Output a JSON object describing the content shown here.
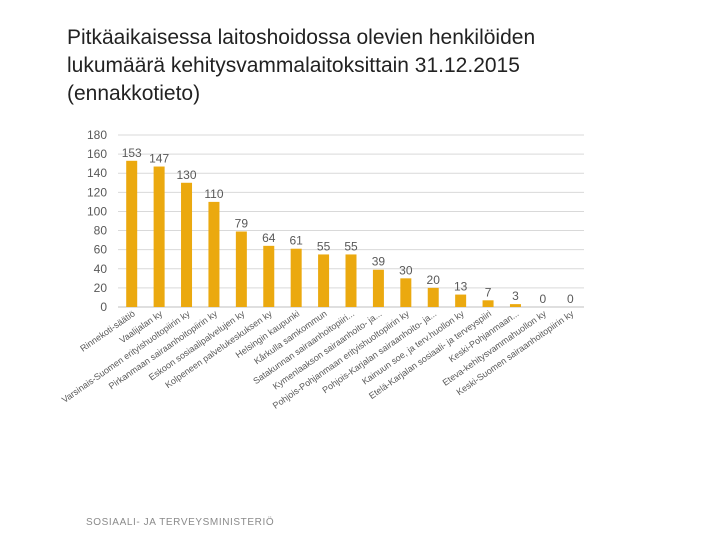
{
  "slide": {
    "title_lines": [
      "Pitkäaikaisessa laitoshoidossa olevien henkilöiden",
      "lukumäärä kehitysvammalaitoksittain 31.12.2015",
      "(ennakkotieto)"
    ],
    "footer": "SOSIAALI- JA TERVEYSMINISTERIÖ"
  },
  "chart_data": {
    "type": "bar",
    "title": "",
    "xlabel": "",
    "ylabel": "",
    "ylim": [
      0,
      180
    ],
    "yticks": [
      0,
      20,
      40,
      60,
      80,
      100,
      120,
      140,
      160,
      180
    ],
    "grid": true,
    "legend": "none",
    "bar_color": "#EBA90F",
    "grid_color": "#d9d9d9",
    "categories": [
      "Rinnekoti-säätiö",
      "Vaalijalan ky",
      "Varsinais-Suomen erityishuoltopiirin ky",
      "Pirkanmaan sairaanhoitopiirin ky",
      "Eskoon sosiaalipalvelujen ky",
      "Kolpeneen palvelukeskuksen ky",
      "Helsingin kaupunki",
      "Kårkulla samkommun",
      "Satakunnan sairaanhoitopiiri...",
      "Kymenlaakson sairaanhoito- ja...",
      "Pohjois-Pohjanmaan erityishuoltopiirin ky",
      "Pohjois-Karjalan sairaanhoito- ja...",
      "Kainuun soe, ja terv.huollon ky",
      "Etelä-Karjalan sosiaali- ja terveyspiiri",
      "Keski-Pohjanmaan...",
      "Eteva-kehitysvammahuollon ky",
      "Keski-Suomen sairaanhoitopiirin ky"
    ],
    "values": [
      153,
      147,
      130,
      110,
      79,
      64,
      61,
      55,
      55,
      39,
      30,
      20,
      13,
      7,
      3,
      0,
      0
    ]
  }
}
